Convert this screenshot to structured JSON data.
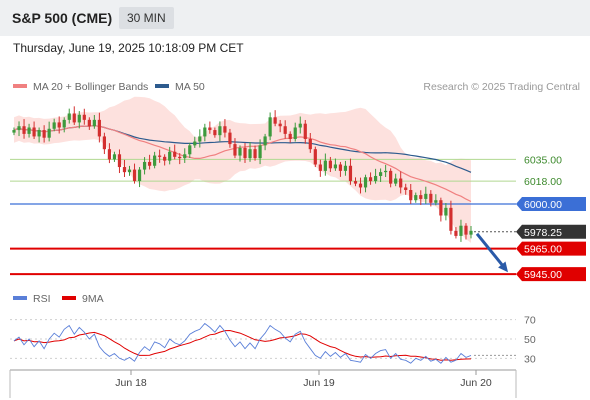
{
  "header": {
    "title": "S&P 500 (CME)",
    "timeframe": "30 MIN",
    "datetime": "Thursday, June 19, 2025 10:18:09 PM CET"
  },
  "legend": {
    "ma20_label": "MA 20 + Bollinger Bands",
    "ma50_label": "MA 50",
    "copyright": "Research © 2025 Trading Central"
  },
  "rsi_legend": {
    "rsi_label": "RSI",
    "ma_label": "9MA"
  },
  "colors": {
    "up": "#3d9a3d",
    "down": "#d32f2f",
    "ma20": "#f08080",
    "ma50": "#2d5b8e",
    "band": "#fcd9d6",
    "support": "#e00000",
    "pivot": "#3b6fd6",
    "resistance": "#b0d890",
    "rsi": "#5a7fd8",
    "rsi_ma": "#e00000"
  },
  "chart_data": [
    {
      "type": "candlestick",
      "x_ticks": [
        "Jun 18",
        "Jun 19",
        "Jun 20"
      ],
      "ylim": [
        5942,
        6080
      ],
      "last_price": 5978.25,
      "levels": [
        {
          "label": "6035.00",
          "value": 6035.0,
          "kind": "resistance"
        },
        {
          "label": "6018.00",
          "value": 6018.0,
          "kind": "resistance"
        },
        {
          "label": "6000.00",
          "value": 6000.0,
          "kind": "pivot"
        },
        {
          "label": "5978.25",
          "value": 5978.25,
          "kind": "last"
        },
        {
          "label": "5965.00",
          "value": 5965.0,
          "kind": "support"
        },
        {
          "label": "5945.00",
          "value": 5945.0,
          "kind": "support"
        }
      ],
      "close": [
        6058,
        6061,
        6055,
        6060,
        6053,
        6058,
        6052,
        6059,
        6064,
        6060,
        6066,
        6071,
        6064,
        6070,
        6066,
        6061,
        6066,
        6053,
        6043,
        6035,
        6039,
        6029,
        6025,
        6027,
        6018,
        6027,
        6033,
        6030,
        6038,
        6037,
        6034,
        6041,
        6037,
        6036,
        6039,
        6046,
        6049,
        6053,
        6060,
        6058,
        6054,
        6061,
        6056,
        6047,
        6038,
        6044,
        6036,
        6043,
        6036,
        6046,
        6053,
        6068,
        6063,
        6061,
        6055,
        6051,
        6060,
        6063,
        6051,
        6043,
        6031,
        6026,
        6034,
        6028,
        6031,
        6026,
        6030,
        6018,
        6016,
        6013,
        6021,
        6018,
        6022,
        6025,
        6026,
        6016,
        6020,
        6013,
        6011,
        6003,
        6007,
        6004,
        6008,
        6001,
        6003,
        5991,
        5997,
        5979,
        5975,
        5983,
        5976,
        5979
      ]
    },
    {
      "type": "line",
      "series": [
        {
          "name": "RSI"
        },
        {
          "name": "9MA"
        }
      ],
      "y_ticks": [
        70,
        50,
        30
      ],
      "ylim": [
        20,
        80
      ],
      "rsi": [
        48,
        52,
        44,
        50,
        42,
        48,
        40,
        50,
        56,
        52,
        60,
        64,
        55,
        62,
        57,
        50,
        55,
        42,
        36,
        32,
        35,
        30,
        28,
        31,
        27,
        36,
        42,
        38,
        47,
        45,
        41,
        50,
        46,
        44,
        48,
        55,
        58,
        60,
        66,
        62,
        57,
        64,
        58,
        49,
        42,
        47,
        40,
        46,
        40,
        50,
        56,
        64,
        60,
        57,
        51,
        47,
        55,
        58,
        47,
        40,
        33,
        30,
        37,
        32,
        36,
        31,
        35,
        28,
        27,
        26,
        34,
        30,
        35,
        38,
        39,
        30,
        35,
        29,
        28,
        25,
        30,
        28,
        32,
        27,
        29,
        25,
        31,
        26,
        28,
        35,
        31,
        33
      ]
    }
  ]
}
